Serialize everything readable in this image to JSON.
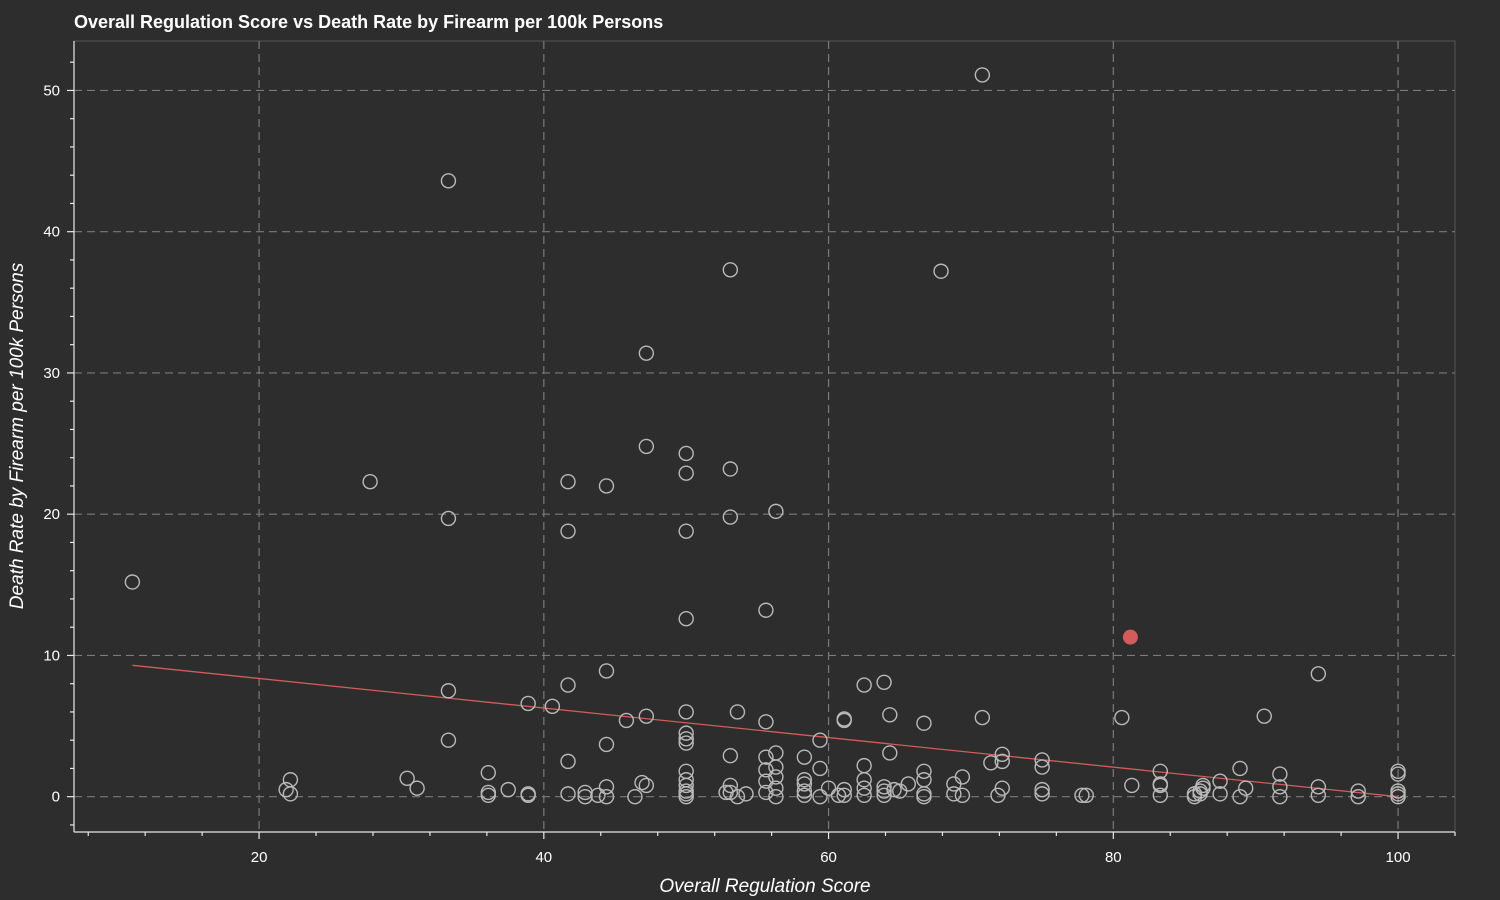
{
  "chart_data": {
    "type": "scatter",
    "title": "Overall Regulation Score vs Death Rate by Firearm per 100k Persons",
    "xlabel": "Overall Regulation Score",
    "ylabel": "Death Rate by Firearm per 100k Persons",
    "xlim": [
      7,
      104
    ],
    "ylim": [
      -2.5,
      53.5
    ],
    "xticks": [
      20,
      40,
      60,
      80,
      100
    ],
    "yticks": [
      0,
      10,
      20,
      30,
      40,
      50
    ],
    "grid": true,
    "colors": {
      "background": "#2d2d2d",
      "points": "#b9b9b9",
      "highlight": "#d25c5c",
      "trend": "#d25c5c",
      "grid": "#7a7a7a",
      "text": "#ffffff"
    },
    "highlight": {
      "x": 81.2,
      "y": 11.3
    },
    "trend_line": {
      "x": [
        11.1,
        100
      ],
      "y": [
        9.3,
        0.0
      ]
    },
    "points": [
      [
        11.1,
        15.2
      ],
      [
        21.9,
        0.5
      ],
      [
        22.2,
        1.2
      ],
      [
        22.2,
        0.2
      ],
      [
        27.8,
        22.3
      ],
      [
        30.4,
        1.3
      ],
      [
        31.1,
        0.6
      ],
      [
        33.3,
        43.6
      ],
      [
        33.3,
        19.7
      ],
      [
        33.3,
        7.5
      ],
      [
        33.3,
        4.0
      ],
      [
        36.1,
        1.7
      ],
      [
        36.1,
        0.3
      ],
      [
        36.1,
        0.1
      ],
      [
        37.5,
        0.5
      ],
      [
        38.9,
        6.6
      ],
      [
        38.9,
        0.1
      ],
      [
        38.9,
        0.2
      ],
      [
        40.6,
        6.4
      ],
      [
        41.7,
        22.3
      ],
      [
        41.7,
        18.8
      ],
      [
        41.7,
        7.9
      ],
      [
        41.7,
        2.5
      ],
      [
        41.7,
        0.2
      ],
      [
        42.9,
        0.3
      ],
      [
        42.9,
        0.0
      ],
      [
        43.8,
        0.1
      ],
      [
        44.4,
        22.0
      ],
      [
        44.4,
        8.9
      ],
      [
        44.4,
        3.7
      ],
      [
        44.4,
        0.7
      ],
      [
        44.4,
        0.0
      ],
      [
        45.8,
        5.4
      ],
      [
        46.4,
        0.0
      ],
      [
        46.9,
        1.0
      ],
      [
        47.2,
        31.4
      ],
      [
        47.2,
        24.8
      ],
      [
        47.2,
        5.7
      ],
      [
        47.2,
        0.8
      ],
      [
        50.0,
        24.3
      ],
      [
        50.0,
        22.9
      ],
      [
        50.0,
        18.8
      ],
      [
        50.0,
        12.6
      ],
      [
        50.0,
        6.0
      ],
      [
        50.0,
        4.5
      ],
      [
        50.0,
        4.1
      ],
      [
        50.0,
        3.8
      ],
      [
        50.0,
        1.8
      ],
      [
        50.0,
        1.2
      ],
      [
        50.0,
        0.8
      ],
      [
        50.0,
        0.4
      ],
      [
        50.0,
        0.2
      ],
      [
        50.0,
        0.0
      ],
      [
        52.8,
        0.3
      ],
      [
        53.1,
        37.3
      ],
      [
        53.1,
        23.2
      ],
      [
        53.1,
        19.8
      ],
      [
        53.1,
        2.9
      ],
      [
        53.1,
        0.8
      ],
      [
        53.1,
        0.3
      ],
      [
        53.6,
        6.0
      ],
      [
        53.6,
        0.0
      ],
      [
        54.2,
        0.2
      ],
      [
        55.6,
        13.2
      ],
      [
        55.6,
        5.3
      ],
      [
        55.6,
        2.8
      ],
      [
        55.6,
        1.9
      ],
      [
        55.6,
        1.1
      ],
      [
        55.6,
        0.3
      ],
      [
        56.3,
        20.2
      ],
      [
        56.3,
        3.1
      ],
      [
        56.3,
        2.1
      ],
      [
        56.3,
        1.4
      ],
      [
        56.3,
        0.6
      ],
      [
        56.3,
        0.0
      ],
      [
        58.3,
        2.8
      ],
      [
        58.3,
        1.2
      ],
      [
        58.3,
        0.9
      ],
      [
        58.3,
        0.4
      ],
      [
        58.3,
        0.1
      ],
      [
        59.4,
        4.0
      ],
      [
        59.4,
        2.0
      ],
      [
        59.4,
        0.0
      ],
      [
        60.0,
        0.6
      ],
      [
        60.7,
        0.1
      ],
      [
        61.1,
        5.5
      ],
      [
        61.1,
        5.4
      ],
      [
        61.1,
        0.5
      ],
      [
        61.1,
        0.1
      ],
      [
        62.5,
        7.9
      ],
      [
        62.5,
        2.2
      ],
      [
        62.5,
        1.2
      ],
      [
        62.5,
        0.6
      ],
      [
        62.5,
        0.1
      ],
      [
        63.9,
        8.1
      ],
      [
        63.9,
        0.7
      ],
      [
        63.9,
        0.4
      ],
      [
        63.9,
        0.1
      ],
      [
        64.3,
        5.8
      ],
      [
        64.3,
        3.1
      ],
      [
        64.6,
        0.5
      ],
      [
        65.0,
        0.4
      ],
      [
        65.6,
        0.9
      ],
      [
        66.7,
        5.2
      ],
      [
        66.7,
        1.8
      ],
      [
        66.7,
        1.2
      ],
      [
        66.7,
        0.2
      ],
      [
        66.7,
        0.0
      ],
      [
        67.9,
        37.2
      ],
      [
        68.8,
        0.9
      ],
      [
        68.8,
        0.2
      ],
      [
        69.4,
        1.4
      ],
      [
        69.4,
        0.1
      ],
      [
        70.8,
        51.1
      ],
      [
        70.8,
        5.6
      ],
      [
        71.4,
        2.4
      ],
      [
        71.9,
        0.1
      ],
      [
        72.2,
        3.0
      ],
      [
        72.2,
        2.5
      ],
      [
        72.2,
        0.6
      ],
      [
        75.0,
        2.6
      ],
      [
        75.0,
        2.1
      ],
      [
        75.0,
        0.5
      ],
      [
        75.0,
        0.2
      ],
      [
        77.8,
        0.1
      ],
      [
        78.1,
        0.1
      ],
      [
        80.6,
        5.6
      ],
      [
        81.3,
        0.8
      ],
      [
        83.3,
        1.8
      ],
      [
        83.3,
        0.9
      ],
      [
        83.3,
        0.8
      ],
      [
        83.3,
        0.1
      ],
      [
        85.7,
        0.2
      ],
      [
        85.7,
        0.0
      ],
      [
        86.1,
        0.4
      ],
      [
        86.1,
        0.2
      ],
      [
        86.3,
        0.8
      ],
      [
        86.3,
        0.6
      ],
      [
        87.5,
        1.1
      ],
      [
        87.5,
        0.2
      ],
      [
        88.9,
        2.0
      ],
      [
        88.9,
        0.0
      ],
      [
        89.3,
        0.6
      ],
      [
        90.6,
        5.7
      ],
      [
        91.7,
        1.6
      ],
      [
        91.7,
        0.7
      ],
      [
        91.7,
        0.0
      ],
      [
        94.4,
        8.7
      ],
      [
        94.4,
        0.7
      ],
      [
        94.4,
        0.1
      ],
      [
        97.2,
        0.4
      ],
      [
        97.2,
        0.0
      ],
      [
        100.0,
        1.8
      ],
      [
        100.0,
        1.6
      ],
      [
        100.0,
        0.4
      ],
      [
        100.0,
        0.2
      ],
      [
        100.0,
        0.0
      ]
    ]
  }
}
